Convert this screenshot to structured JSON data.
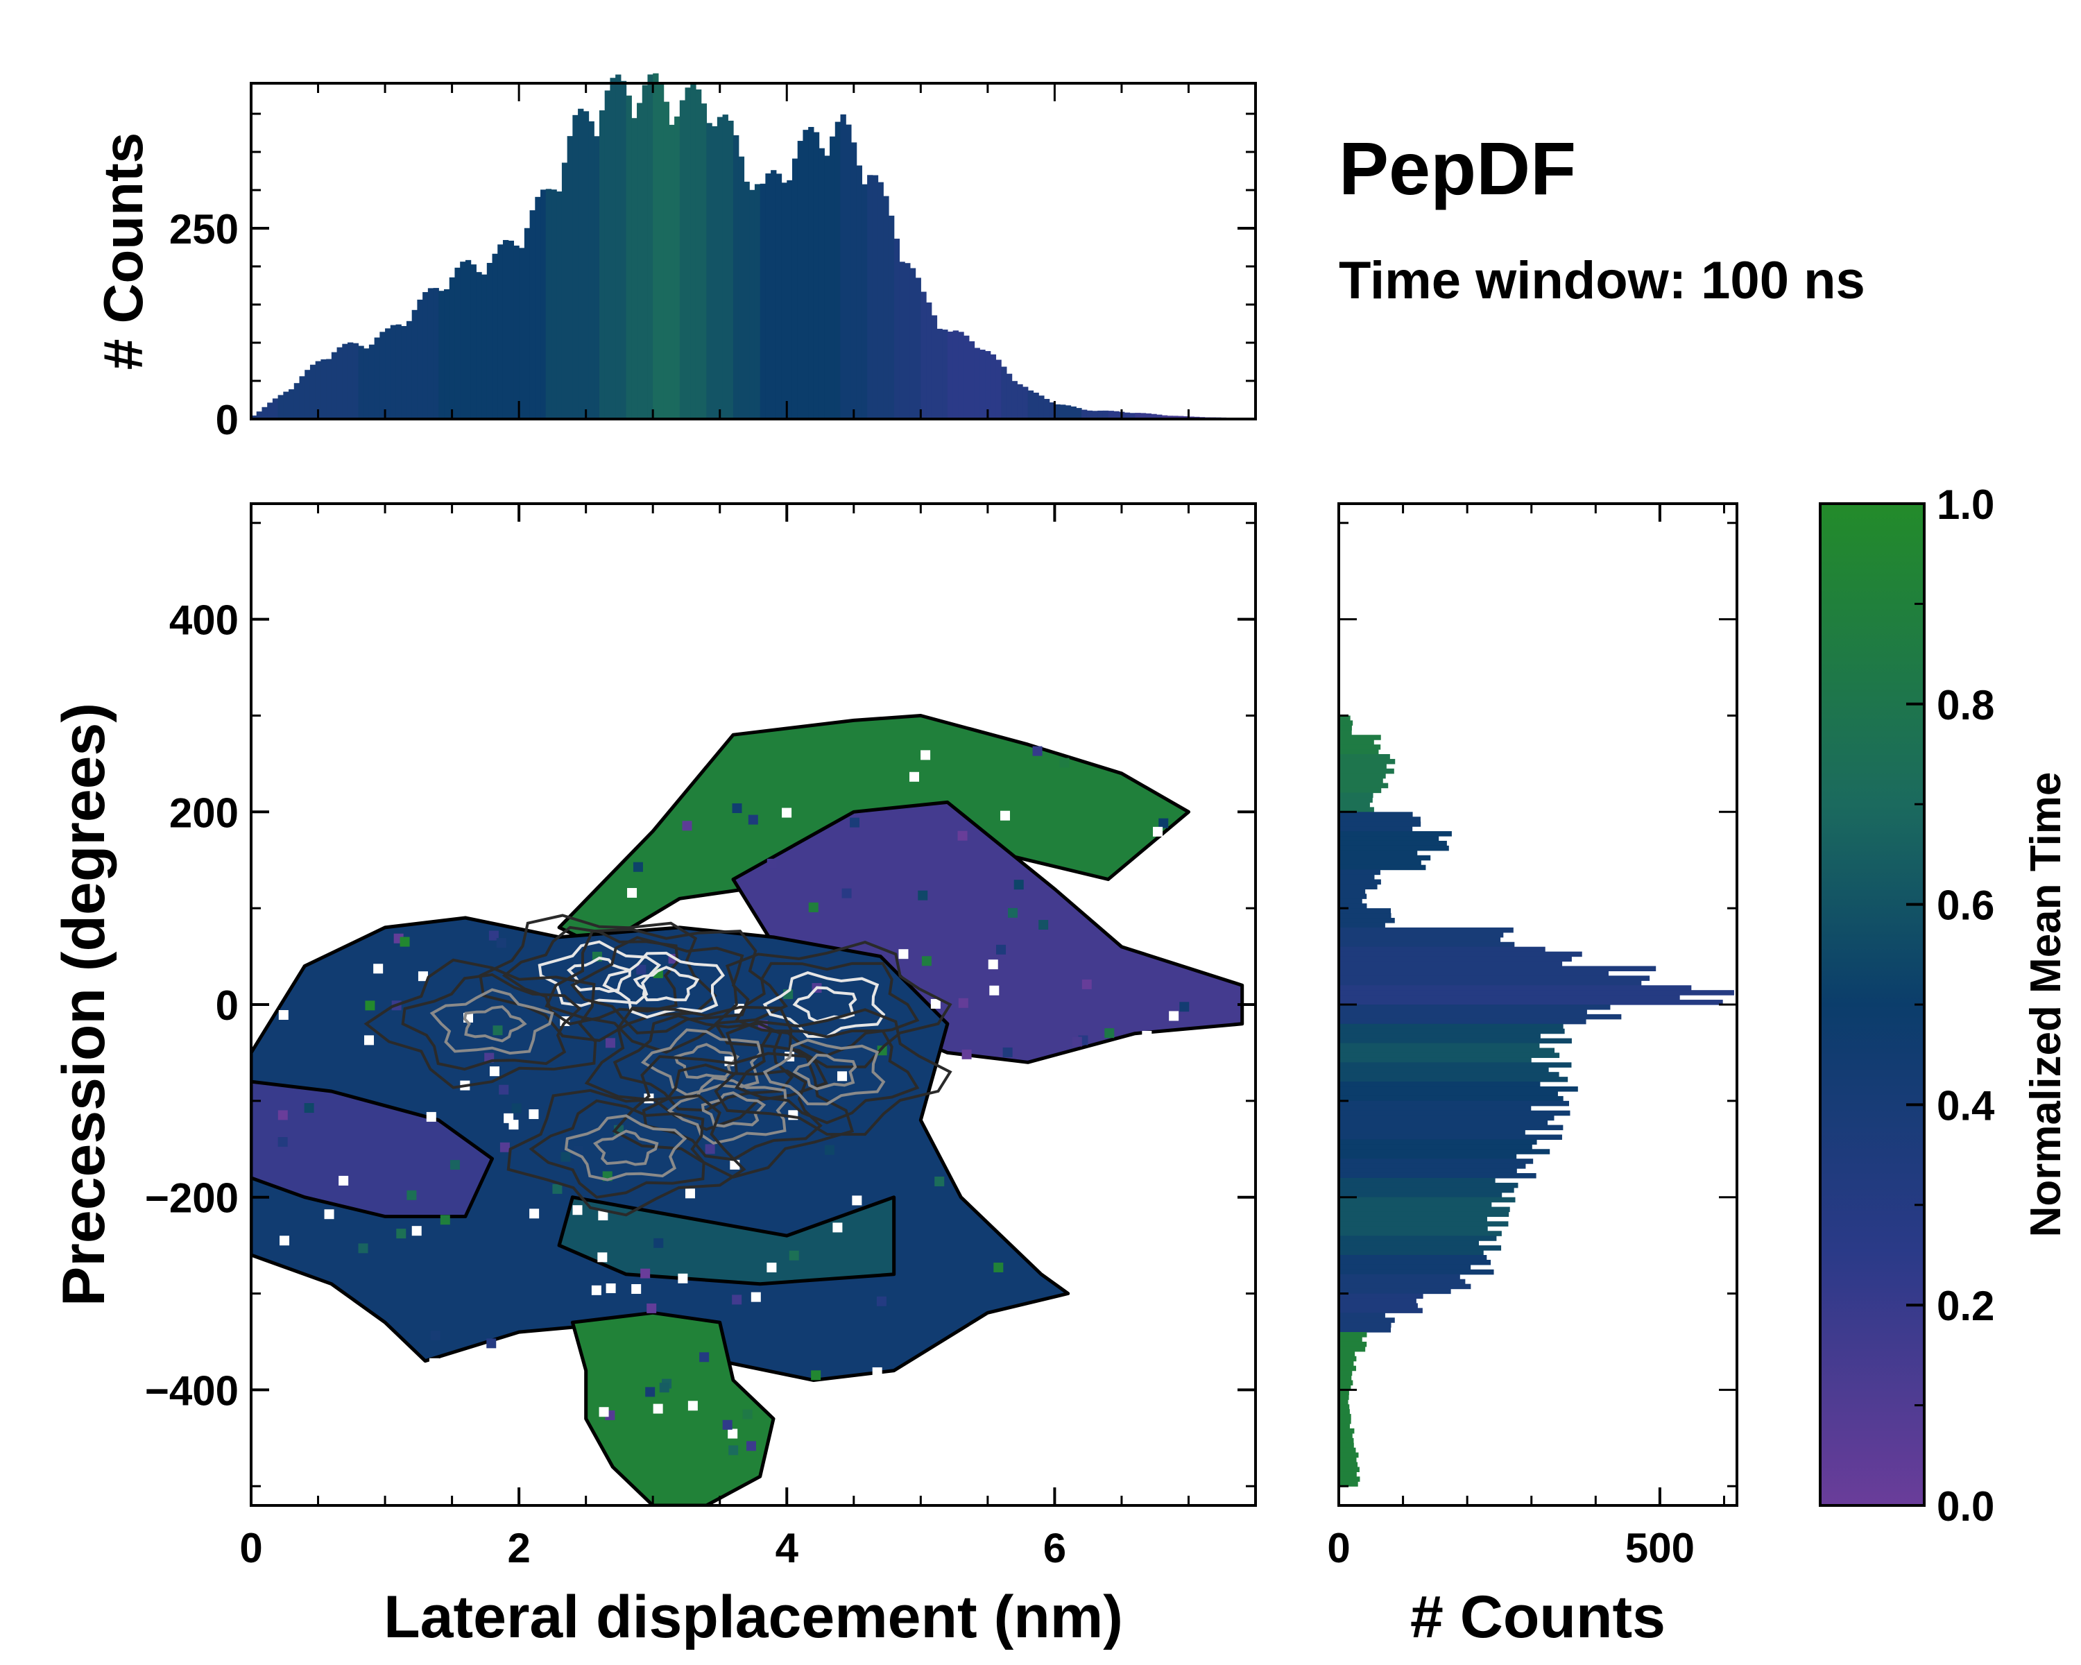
{
  "title": "PepDF",
  "subtitle": "Time window: 100 ns",
  "colors": {
    "purple": "#6a3d9a",
    "blue": "#263a7a",
    "navy": "#0b3d6b",
    "teal": "#1b6a5e",
    "green": "#238b2a",
    "contour_dark": "#1a1a1a",
    "contour_light": "#e0e0e0"
  },
  "chart_data": [
    {
      "id": "top_histogram",
      "type": "bar",
      "ylabel": "# Counts",
      "xlim": [
        0,
        7.5
      ],
      "ylim": [
        0,
        440
      ],
      "yticks": [
        0,
        250
      ],
      "ytick_labels": [
        "0",
        "250"
      ],
      "x": [
        0.0,
        0.2,
        0.4,
        0.6,
        0.8,
        1.0,
        1.2,
        1.4,
        1.6,
        1.8,
        2.0,
        2.2,
        2.4,
        2.6,
        2.8,
        3.0,
        3.2,
        3.4,
        3.6,
        3.8,
        4.0,
        4.2,
        4.4,
        4.6,
        4.8,
        5.0,
        5.2,
        5.4,
        5.6,
        5.8,
        6.0,
        6.2,
        6.4,
        6.6,
        6.8,
        7.0,
        7.2,
        7.4
      ],
      "values": [
        5,
        30,
        60,
        90,
        95,
        110,
        140,
        175,
        195,
        205,
        240,
        290,
        370,
        410,
        425,
        420,
        405,
        410,
        350,
        290,
        330,
        365,
        370,
        320,
        240,
        155,
        110,
        100,
        65,
        35,
        20,
        12,
        10,
        8,
        5,
        3,
        2,
        1
      ],
      "time_colors": [
        0.35,
        0.4,
        0.4,
        0.4,
        0.45,
        0.45,
        0.45,
        0.5,
        0.5,
        0.5,
        0.5,
        0.55,
        0.55,
        0.6,
        0.65,
        0.7,
        0.65,
        0.6,
        0.55,
        0.5,
        0.5,
        0.5,
        0.45,
        0.4,
        0.35,
        0.3,
        0.25,
        0.25,
        0.3,
        0.35,
        0.4,
        0.3,
        0.25,
        0.2,
        0.15,
        0.15,
        0.2,
        0.2
      ]
    },
    {
      "id": "main_2d_histogram",
      "type": "heatmap",
      "xlabel": "Lateral displacement (nm)",
      "ylabel": "Precession (degrees)",
      "xlim": [
        0,
        7.5
      ],
      "ylim": [
        -520,
        520
      ],
      "xticks": [
        0,
        2,
        4,
        6
      ],
      "xtick_labels": [
        "0",
        "2",
        "4",
        "6"
      ],
      "yticks": [
        400,
        200,
        0,
        -200,
        -400
      ],
      "ytick_labels": [
        "400",
        "200",
        "0",
        "−200",
        "−400"
      ],
      "regions": [
        {
          "name": "upper-green",
          "color": 0.9,
          "points": [
            [
              2.3,
              80
            ],
            [
              3.0,
              180
            ],
            [
              3.6,
              280
            ],
            [
              4.5,
              295
            ],
            [
              5.0,
              300
            ],
            [
              5.8,
              270
            ],
            [
              6.5,
              240
            ],
            [
              7.0,
              200
            ],
            [
              6.4,
              130
            ],
            [
              5.5,
              160
            ],
            [
              5.0,
              180
            ],
            [
              4.3,
              160
            ],
            [
              3.7,
              120
            ],
            [
              3.2,
              110
            ],
            [
              2.6,
              60
            ]
          ]
        },
        {
          "name": "upper-purple",
          "color": 0.15,
          "points": [
            [
              3.6,
              130
            ],
            [
              4.5,
              200
            ],
            [
              5.2,
              210
            ],
            [
              6.0,
              120
            ],
            [
              6.5,
              60
            ],
            [
              7.4,
              20
            ],
            [
              7.4,
              -20
            ],
            [
              6.6,
              -30
            ],
            [
              5.8,
              -60
            ],
            [
              5.2,
              -50
            ],
            [
              4.5,
              -10
            ],
            [
              4.0,
              40
            ]
          ]
        },
        {
          "name": "core-blue",
          "color": 0.45,
          "points": [
            [
              0.0,
              -50
            ],
            [
              0.4,
              40
            ],
            [
              1.0,
              80
            ],
            [
              1.6,
              90
            ],
            [
              2.3,
              70
            ],
            [
              3.2,
              80
            ],
            [
              3.9,
              70
            ],
            [
              4.7,
              50
            ],
            [
              5.2,
              -20
            ],
            [
              5.0,
              -120
            ],
            [
              5.3,
              -200
            ],
            [
              5.9,
              -280
            ],
            [
              6.1,
              -300
            ],
            [
              5.5,
              -320
            ],
            [
              4.8,
              -380
            ],
            [
              4.2,
              -390
            ],
            [
              3.5,
              -370
            ],
            [
              2.8,
              -330
            ],
            [
              2.0,
              -340
            ],
            [
              1.3,
              -370
            ],
            [
              1.0,
              -330
            ],
            [
              0.6,
              -290
            ],
            [
              0.0,
              -260
            ]
          ]
        },
        {
          "name": "left-purple",
          "color": 0.2,
          "points": [
            [
              0.0,
              -80
            ],
            [
              0.6,
              -90
            ],
            [
              1.4,
              -120
            ],
            [
              1.8,
              -160
            ],
            [
              1.6,
              -220
            ],
            [
              1.0,
              -220
            ],
            [
              0.4,
              -200
            ],
            [
              0.0,
              -180
            ]
          ]
        },
        {
          "name": "core-teal",
          "color": 0.6,
          "points": [
            [
              2.4,
              -200
            ],
            [
              3.2,
              -220
            ],
            [
              4.0,
              -240
            ],
            [
              4.8,
              -200
            ],
            [
              4.8,
              -280
            ],
            [
              3.8,
              -290
            ],
            [
              2.8,
              -280
            ],
            [
              2.3,
              -250
            ]
          ]
        },
        {
          "name": "lower-green",
          "color": 0.92,
          "points": [
            [
              2.4,
              -330
            ],
            [
              3.0,
              -320
            ],
            [
              3.5,
              -330
            ],
            [
              3.6,
              -390
            ],
            [
              3.9,
              -430
            ],
            [
              3.8,
              -490
            ],
            [
              3.4,
              -520
            ],
            [
              3.0,
              -520
            ],
            [
              2.7,
              -480
            ],
            [
              2.5,
              -430
            ],
            [
              2.5,
              -380
            ]
          ]
        }
      ],
      "density_peaks": [
        {
          "x": 2.6,
          "y": 30,
          "intensity": 1.0
        },
        {
          "x": 3.1,
          "y": 20,
          "intensity": 0.9
        },
        {
          "x": 4.3,
          "y": 0,
          "intensity": 0.85
        },
        {
          "x": 1.8,
          "y": -20,
          "intensity": 0.6
        },
        {
          "x": 3.4,
          "y": -60,
          "intensity": 0.7
        },
        {
          "x": 3.6,
          "y": -110,
          "intensity": 0.55
        },
        {
          "x": 2.8,
          "y": -150,
          "intensity": 0.5
        },
        {
          "x": 4.3,
          "y": -70,
          "intensity": 0.6
        }
      ]
    },
    {
      "id": "right_histogram",
      "type": "bar",
      "orientation": "horizontal",
      "xlabel": "# Counts",
      "xlim": [
        0,
        620
      ],
      "xticks": [
        0,
        500
      ],
      "xtick_labels": [
        "0",
        "500"
      ],
      "ylim": [
        -520,
        520
      ],
      "y": [
        290,
        270,
        250,
        230,
        210,
        190,
        170,
        150,
        130,
        110,
        90,
        70,
        50,
        30,
        10,
        -10,
        -30,
        -50,
        -70,
        -90,
        -110,
        -130,
        -150,
        -170,
        -190,
        -210,
        -230,
        -250,
        -270,
        -290,
        -310,
        -330,
        -350,
        -370,
        -390,
        -410,
        -430,
        -450,
        -470,
        -490
      ],
      "values": [
        20,
        60,
        80,
        70,
        50,
        120,
        160,
        130,
        60,
        40,
        80,
        250,
        350,
        450,
        560,
        400,
        330,
        320,
        330,
        340,
        330,
        320,
        300,
        280,
        260,
        250,
        240,
        230,
        220,
        190,
        120,
        80,
        40,
        25,
        20,
        15,
        18,
        22,
        28,
        30
      ],
      "time_colors": [
        0.85,
        0.85,
        0.8,
        0.8,
        0.75,
        0.45,
        0.5,
        0.5,
        0.45,
        0.45,
        0.45,
        0.4,
        0.35,
        0.35,
        0.3,
        0.4,
        0.55,
        0.6,
        0.55,
        0.5,
        0.45,
        0.45,
        0.5,
        0.45,
        0.55,
        0.6,
        0.6,
        0.55,
        0.45,
        0.4,
        0.35,
        0.4,
        0.9,
        0.9,
        0.9,
        0.9,
        0.9,
        0.9,
        0.9,
        0.9
      ]
    },
    {
      "id": "colorbar",
      "type": "colorbar",
      "label": "Normalized Mean Time",
      "range": [
        0.0,
        1.0
      ],
      "ticks": [
        0.0,
        0.2,
        0.4,
        0.6,
        0.8,
        1.0
      ],
      "tick_labels": [
        "0.0",
        "0.2",
        "0.4",
        "0.6",
        "0.8",
        "1.0"
      ],
      "stops": [
        {
          "value": 0.0,
          "color": "#6a3d9a"
        },
        {
          "value": 0.25,
          "color": "#2b3a88"
        },
        {
          "value": 0.5,
          "color": "#0b3d6b"
        },
        {
          "value": 0.7,
          "color": "#1b6a5e"
        },
        {
          "value": 1.0,
          "color": "#238b2a"
        }
      ]
    }
  ]
}
